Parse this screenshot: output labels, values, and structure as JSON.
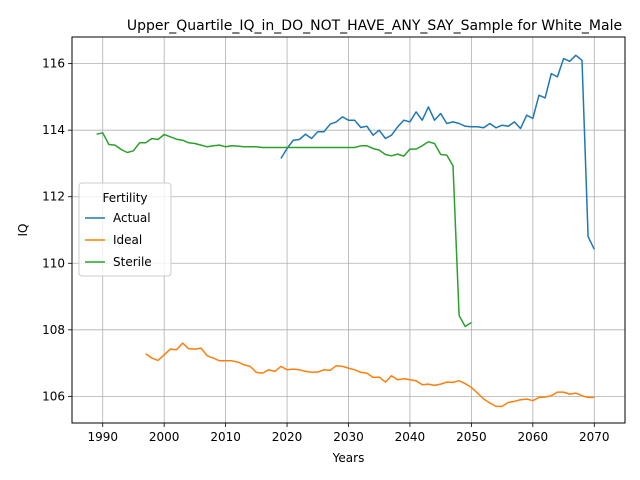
{
  "chart_data": {
    "type": "line",
    "title": "Upper_Quartile_IQ_in_DO_NOT_HAVE_ANY_SAY_Sample for White_Male",
    "xlabel": "Years",
    "ylabel": "IQ",
    "xlim": [
      1985,
      2075
    ],
    "ylim": [
      105.2,
      116.8
    ],
    "xticks": [
      1990,
      2000,
      2010,
      2020,
      2030,
      2040,
      2050,
      2060,
      2070
    ],
    "yticks": [
      106,
      108,
      110,
      112,
      114,
      116
    ],
    "grid": true,
    "legend": {
      "title": "Fertility",
      "position": "center-left"
    },
    "series": [
      {
        "name": "Actual",
        "color": "#1f77b4",
        "x": [
          2019,
          2020,
          2021,
          2022,
          2023,
          2024,
          2025,
          2026,
          2027,
          2028,
          2029,
          2030,
          2031,
          2032,
          2033,
          2034,
          2035,
          2036,
          2037,
          2038,
          2039,
          2040,
          2041,
          2042,
          2043,
          2044,
          2045,
          2046,
          2047,
          2048,
          2049,
          2050,
          2051,
          2052,
          2053,
          2054,
          2055,
          2056,
          2057,
          2058,
          2059,
          2060,
          2061,
          2062,
          2063,
          2064,
          2065,
          2066,
          2067,
          2068,
          2069,
          2070
        ],
        "values": [
          113.15,
          113.45,
          113.7,
          113.72,
          113.88,
          113.75,
          113.95,
          113.95,
          114.18,
          114.25,
          114.4,
          114.3,
          114.3,
          114.08,
          114.12,
          113.85,
          114.0,
          113.75,
          113.85,
          114.1,
          114.3,
          114.25,
          114.55,
          114.3,
          114.7,
          114.3,
          114.5,
          114.2,
          114.25,
          114.2,
          114.12,
          114.1,
          114.1,
          114.07,
          114.2,
          114.07,
          114.15,
          114.12,
          114.25,
          114.05,
          114.45,
          114.35,
          115.05,
          114.97,
          115.7,
          115.6,
          116.15,
          116.07,
          116.25,
          116.1,
          110.8,
          110.42
        ]
      },
      {
        "name": "Ideal",
        "color": "#ff7f0e",
        "x": [
          1997,
          1998,
          1999,
          2000,
          2001,
          2002,
          2003,
          2004,
          2005,
          2006,
          2007,
          2008,
          2009,
          2010,
          2011,
          2012,
          2013,
          2014,
          2015,
          2016,
          2017,
          2018,
          2019,
          2020,
          2021,
          2022,
          2023,
          2024,
          2025,
          2026,
          2027,
          2028,
          2029,
          2030,
          2031,
          2032,
          2033,
          2034,
          2035,
          2036,
          2037,
          2038,
          2039,
          2040,
          2041,
          2042,
          2043,
          2044,
          2045,
          2046,
          2047,
          2048,
          2049,
          2050,
          2051,
          2052,
          2053,
          2054,
          2055,
          2056,
          2057,
          2058,
          2059,
          2060,
          2061,
          2062,
          2063,
          2064,
          2065,
          2066,
          2067,
          2068,
          2069,
          2070
        ],
        "values": [
          107.28,
          107.15,
          107.08,
          107.25,
          107.42,
          107.4,
          107.6,
          107.43,
          107.42,
          107.45,
          107.22,
          107.15,
          107.07,
          107.07,
          107.07,
          107.03,
          106.95,
          106.9,
          106.72,
          106.7,
          106.8,
          106.75,
          106.9,
          106.8,
          106.82,
          106.8,
          106.75,
          106.73,
          106.73,
          106.8,
          106.78,
          106.92,
          106.9,
          106.85,
          106.8,
          106.72,
          106.7,
          106.57,
          106.58,
          106.43,
          106.62,
          106.5,
          106.53,
          106.5,
          106.47,
          106.35,
          106.37,
          106.33,
          106.37,
          106.43,
          106.42,
          106.47,
          106.38,
          106.27,
          106.1,
          105.92,
          105.8,
          105.7,
          105.7,
          105.82,
          105.85,
          105.9,
          105.92,
          105.87,
          105.97,
          105.98,
          106.02,
          106.13,
          106.13,
          106.07,
          106.1,
          106.02,
          105.97,
          105.97
        ]
      },
      {
        "name": "Sterile",
        "color": "#2ca02c",
        "x": [
          1989,
          1990,
          1991,
          1992,
          1993,
          1994,
          1995,
          1996,
          1997,
          1998,
          1999,
          2000,
          2001,
          2002,
          2003,
          2004,
          2005,
          2006,
          2007,
          2008,
          2009,
          2010,
          2011,
          2012,
          2013,
          2014,
          2015,
          2016,
          2017,
          2018,
          2019,
          2020,
          2021,
          2022,
          2023,
          2024,
          2025,
          2026,
          2027,
          2028,
          2029,
          2030,
          2031,
          2032,
          2033,
          2034,
          2035,
          2036,
          2037,
          2038,
          2039,
          2040,
          2041,
          2042,
          2043,
          2044,
          2045,
          2046,
          2047,
          2048,
          2049,
          2050
        ],
        "values": [
          113.88,
          113.92,
          113.57,
          113.55,
          113.42,
          113.33,
          113.38,
          113.62,
          113.62,
          113.75,
          113.72,
          113.87,
          113.8,
          113.73,
          113.7,
          113.62,
          113.6,
          113.55,
          113.5,
          113.53,
          113.55,
          113.5,
          113.53,
          113.52,
          113.5,
          113.5,
          113.5,
          113.48,
          113.48,
          113.48,
          113.48,
          113.48,
          113.48,
          113.48,
          113.48,
          113.48,
          113.48,
          113.48,
          113.48,
          113.48,
          113.48,
          113.48,
          113.48,
          113.53,
          113.53,
          113.45,
          113.4,
          113.27,
          113.23,
          113.28,
          113.22,
          113.43,
          113.43,
          113.53,
          113.65,
          113.6,
          113.27,
          113.25,
          112.93,
          108.43,
          108.1,
          108.22
        ]
      }
    ]
  }
}
